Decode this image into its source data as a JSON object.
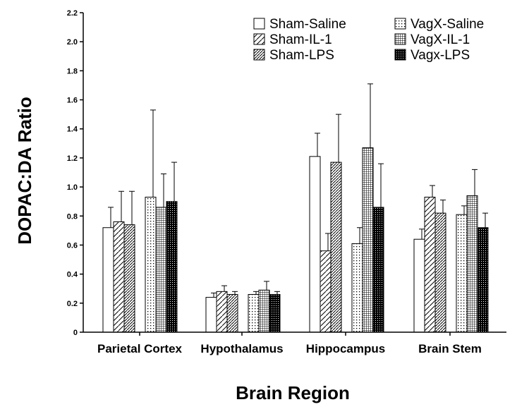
{
  "chart_data": {
    "type": "bar",
    "xlabel": "Brain Region",
    "ylabel": "DOPAC:DA Ratio",
    "ylim": [
      0,
      2.2
    ],
    "yticks": [
      "0",
      "0.2",
      "0.4",
      "0.6",
      "0.8",
      "1.0",
      "1.2",
      "1.4",
      "1.6",
      "1.8",
      "2.0",
      "2.2"
    ],
    "categories": [
      "Parietal Cortex",
      "Hypothalamus",
      "Hippocampus",
      "Brain Stem"
    ],
    "legend_position": "top-right",
    "series": [
      {
        "name": "Sham-Saline",
        "pattern": "white",
        "values": [
          0.72,
          0.24,
          1.21,
          0.64
        ],
        "errors": [
          0.14,
          0.03,
          0.16,
          0.07
        ]
      },
      {
        "name": "Sham-IL-1",
        "pattern": "diag-sparse",
        "values": [
          0.76,
          0.28,
          0.56,
          0.93
        ],
        "errors": [
          0.21,
          0.04,
          0.12,
          0.08
        ]
      },
      {
        "name": "Sham-LPS",
        "pattern": "diag-dense",
        "values": [
          0.74,
          0.26,
          1.17,
          0.82
        ],
        "errors": [
          0.23,
          0.02,
          0.33,
          0.09
        ]
      },
      {
        "name": "VagX-Saline",
        "pattern": "dots",
        "values": [
          0.93,
          0.26,
          0.61,
          0.81
        ],
        "errors": [
          0.6,
          0.02,
          0.11,
          0.06
        ]
      },
      {
        "name": "VagX-IL-1",
        "pattern": "grid",
        "values": [
          0.86,
          0.29,
          1.27,
          0.94
        ],
        "errors": [
          0.23,
          0.06,
          0.44,
          0.18
        ]
      },
      {
        "name": "Vagx-LPS",
        "pattern": "dark",
        "values": [
          0.9,
          0.26,
          0.86,
          0.72
        ],
        "errors": [
          0.27,
          0.02,
          0.3,
          0.1
        ]
      }
    ]
  }
}
